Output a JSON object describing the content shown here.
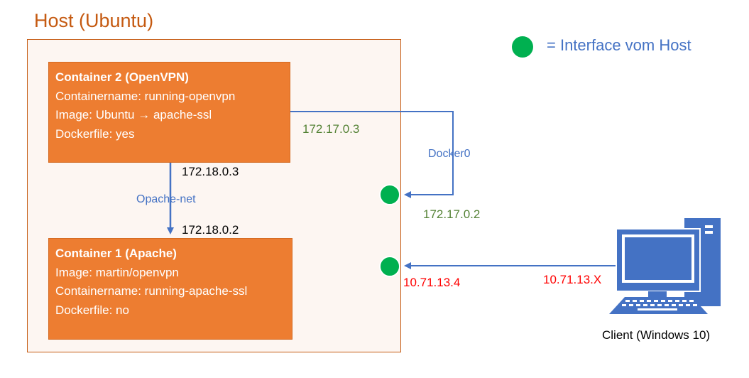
{
  "host": {
    "title": "Host (Ubuntu)"
  },
  "container2": {
    "title": "Container 2 (OpenVPN)",
    "lines": [
      "Containername: running-openvpn",
      "Image: Ubuntu → apache-ssl",
      "Dockerfile: yes"
    ]
  },
  "container1": {
    "title": "Container 1 (Apache)",
    "lines": [
      "Image: martin/openvpn",
      "Containername: running-apache-ssl",
      "Dockerfile: no"
    ]
  },
  "ips": {
    "c2_docker0": "172.17.0.3",
    "host_docker0": "172.17.0.2",
    "c2_net": "172.18.0.3",
    "c1_net": "172.18.0.2",
    "host_lan": "10.71.13.4",
    "client": "10.71.13.X"
  },
  "networks": {
    "docker0": "Docker0",
    "opache_net": "Opache-net"
  },
  "legend": {
    "text": "= Interface vom Host"
  },
  "client": {
    "label": "Client (Windows 10)"
  },
  "colors": {
    "orange": "#ed7d31",
    "green_dot": "#00b050",
    "blue": "#4472c4",
    "red": "#ff0000",
    "green_text": "#548235"
  }
}
